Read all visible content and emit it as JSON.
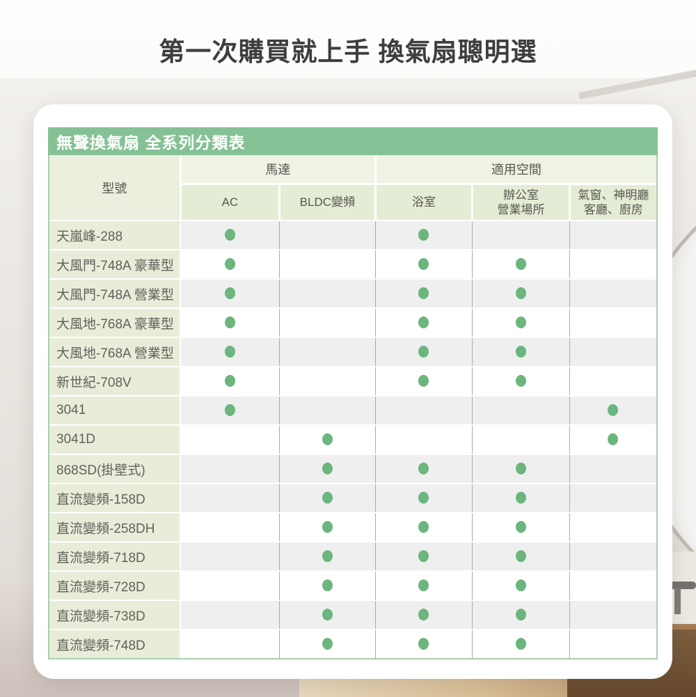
{
  "page_title": "第一次購買就上手 換氣扇聰明選",
  "banner_title": "無聲換氣扇 全系列分類表",
  "chart_data": {
    "type": "table",
    "title": "無聲換氣扇 全系列分類表",
    "header": {
      "model": "型號",
      "groups": [
        {
          "label": "馬達",
          "colspan": 2
        },
        {
          "label": "適用空間",
          "colspan": 3
        }
      ],
      "subcolumns": [
        "AC",
        "BLDC變頻",
        "浴室",
        "辦公室\n營業場所",
        "氣窗、神明廳\n客廳、廚房"
      ]
    },
    "mark_symbol": "green-dot",
    "rows": [
      {
        "model": "天嵐峰-288",
        "shade": "gray",
        "marks": [
          1,
          0,
          1,
          0,
          0
        ]
      },
      {
        "model": "大風門-748A 豪華型",
        "shade": "white",
        "marks": [
          1,
          0,
          1,
          1,
          0
        ]
      },
      {
        "model": "大風門-748A 營業型",
        "shade": "gray",
        "marks": [
          1,
          0,
          1,
          1,
          0
        ]
      },
      {
        "model": "大風地-768A 豪華型",
        "shade": "white",
        "marks": [
          1,
          0,
          1,
          1,
          0
        ]
      },
      {
        "model": "大風地-768A 營業型",
        "shade": "gray",
        "marks": [
          1,
          0,
          1,
          1,
          0
        ]
      },
      {
        "model": "新世紀-708V",
        "shade": "white",
        "marks": [
          1,
          0,
          1,
          1,
          0
        ]
      },
      {
        "model": "3041",
        "shade": "gray",
        "marks": [
          1,
          0,
          0,
          0,
          1
        ]
      },
      {
        "model": "3041D",
        "shade": "white",
        "marks": [
          0,
          1,
          0,
          0,
          1
        ]
      },
      {
        "model": "868SD(掛壁式)",
        "shade": "gray",
        "marks": [
          0,
          1,
          1,
          1,
          0
        ]
      },
      {
        "model": "直流變頻-158D",
        "shade": "gray",
        "marks": [
          0,
          1,
          1,
          1,
          0
        ]
      },
      {
        "model": "直流變頻-258DH",
        "shade": "white",
        "marks": [
          0,
          1,
          1,
          1,
          0
        ]
      },
      {
        "model": "直流變頻-718D",
        "shade": "gray",
        "marks": [
          0,
          1,
          1,
          1,
          0
        ]
      },
      {
        "model": "直流變頻-728D",
        "shade": "white",
        "marks": [
          0,
          1,
          1,
          1,
          0
        ]
      },
      {
        "model": "直流變頻-738D",
        "shade": "gray",
        "marks": [
          0,
          1,
          1,
          1,
          0
        ]
      },
      {
        "model": "直流變頻-748D",
        "shade": "white",
        "marks": [
          0,
          1,
          1,
          1,
          0
        ]
      }
    ]
  },
  "colors": {
    "banner_green": "#84c194",
    "dot_green": "#6ab67e",
    "header_group_bg": "#eef3e3",
    "header_sub_bg": "#e5ecd5",
    "model_column_bg": "#e8edd9",
    "row_gray": "#efefef",
    "table_border_green": "#abceae",
    "title_color": "#3e3d3b"
  }
}
